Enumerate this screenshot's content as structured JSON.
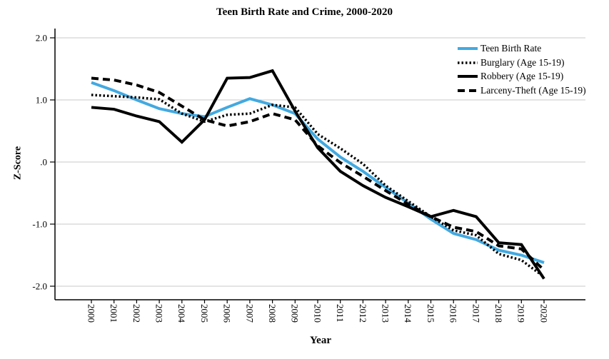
{
  "chart_data": {
    "type": "line",
    "title": "Teen Birth Rate and Crime, 2000-2020",
    "xlabel": "Year",
    "ylabel": "Z-Score",
    "x": [
      2000,
      2001,
      2002,
      2003,
      2004,
      2005,
      2006,
      2007,
      2008,
      2009,
      2010,
      2011,
      2012,
      2013,
      2014,
      2015,
      2016,
      2017,
      2018,
      2019,
      2020
    ],
    "ylim": [
      -2.2,
      2.15
    ],
    "yticks": {
      "values": [
        2.0,
        1.0,
        0.0,
        -1.0,
        -2.0
      ],
      "labels": [
        "2.0",
        "1.0",
        ".0",
        "-1.0",
        "-2.0"
      ]
    },
    "grid": true,
    "legend_position": "top-right",
    "colors": {
      "axis": "#000000",
      "gridline": "#c8c8c8",
      "teen_birth_blue": "#42a9e0",
      "crime_black": "#000000"
    },
    "series": [
      {
        "name": "Teen Birth Rate",
        "color": "#42a9e0",
        "line_style": "solid",
        "values": [
          1.28,
          1.15,
          1.0,
          0.86,
          0.78,
          0.73,
          0.88,
          1.02,
          0.92,
          0.78,
          0.37,
          0.08,
          -0.15,
          -0.41,
          -0.66,
          -0.92,
          -1.15,
          -1.25,
          -1.42,
          -1.5,
          -1.62
        ]
      },
      {
        "name": "Burglary (Age 15-19)",
        "color": "#000000",
        "line_style": "dotted",
        "values": [
          1.08,
          1.06,
          1.04,
          1.01,
          0.78,
          0.65,
          0.76,
          0.78,
          0.92,
          0.88,
          0.45,
          0.22,
          -0.03,
          -0.38,
          -0.63,
          -0.88,
          -1.1,
          -1.18,
          -1.48,
          -1.58,
          -1.85
        ]
      },
      {
        "name": "Robbery (Age 15-19)",
        "color": "#000000",
        "line_style": "solid",
        "values": [
          0.88,
          0.85,
          0.74,
          0.65,
          0.32,
          0.68,
          1.35,
          1.36,
          1.47,
          0.82,
          0.23,
          -0.15,
          -0.38,
          -0.57,
          -0.72,
          -0.88,
          -0.78,
          -0.88,
          -1.3,
          -1.33,
          -1.88
        ]
      },
      {
        "name": "Larceny-Theft (Age 15-19)",
        "color": "#000000",
        "line_style": "dashed",
        "values": [
          1.35,
          1.32,
          1.24,
          1.12,
          0.9,
          0.68,
          0.58,
          0.65,
          0.78,
          0.68,
          0.26,
          -0.01,
          -0.23,
          -0.46,
          -0.68,
          -0.88,
          -1.05,
          -1.12,
          -1.35,
          -1.4,
          -1.74
        ]
      }
    ]
  }
}
